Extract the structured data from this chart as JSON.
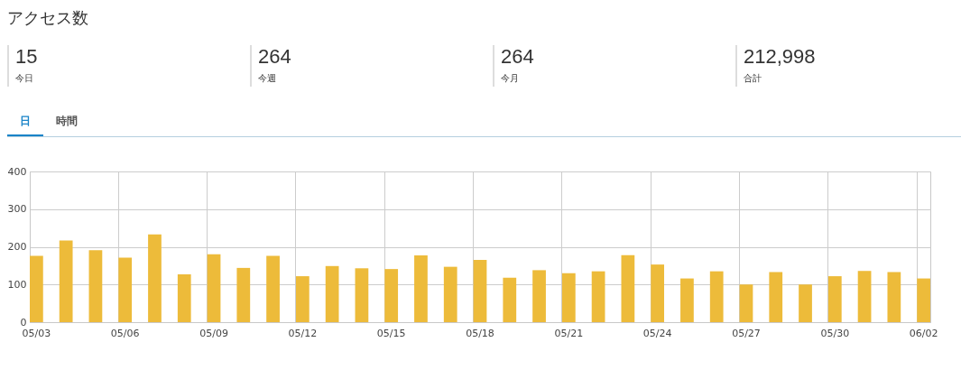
{
  "chart_data": [
    {
      "type": "other",
      "title": "アクセス数",
      "annotations": [
        "15",
        "今日",
        "264",
        "今週",
        "264",
        "今月",
        "212,998",
        "合計",
        "日",
        "時間"
      ]
    },
    {
      "type": "bar",
      "categories": [
        "05/03",
        null,
        null,
        "05/06",
        null,
        null,
        "05/09",
        null,
        null,
        "05/12",
        null,
        null,
        "05/15",
        null,
        null,
        "05/18",
        null,
        null,
        "05/21",
        null,
        null,
        "05/24",
        null,
        null,
        "05/27",
        null,
        null,
        "05/30",
        null,
        null,
        "06/02"
      ],
      "values": [
        176,
        217,
        191,
        171,
        233,
        127,
        180,
        144,
        176,
        122,
        149,
        143,
        141,
        177,
        147,
        165,
        118,
        138,
        130,
        135,
        178,
        153,
        116,
        135,
        100,
        133,
        100,
        122,
        136,
        133,
        116
      ],
      "color": "#edbb3a",
      "ylim": [
        0,
        400
      ],
      "yticks": [
        0,
        100,
        200,
        300,
        400
      ],
      "grid": true
    }
  ]
}
